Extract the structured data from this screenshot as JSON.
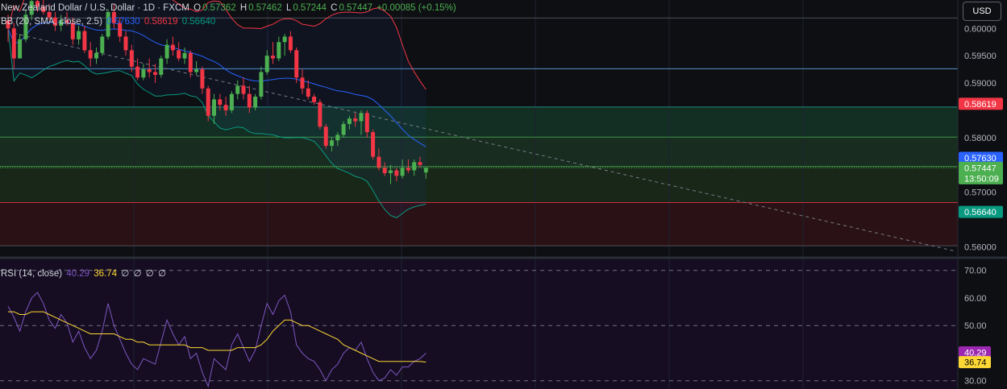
{
  "header": {
    "symbol_title": "New Zealand Dollar / U.S. Dollar · 1D · FXCM",
    "o_label": "O",
    "o_value": "0.57362",
    "h_label": "H",
    "h_value": "0.57462",
    "l_label": "L",
    "l_value": "0.57244",
    "c_label": "C",
    "c_value": "0.57447",
    "change": "+0.00085 (+0.15%)",
    "currency": "USD"
  },
  "bb_legend": {
    "label": "BB (20, SMA, close, 2.5)",
    "basis": "0.57630",
    "upper": "0.58619",
    "lower": "0.56640"
  },
  "rsi_legend": {
    "label": "RSI (14, close)",
    "rsi": "40.29",
    "ma": "36.74",
    "extra": [
      "∅",
      "∅",
      "∅",
      "∅"
    ]
  },
  "colors": {
    "up": "#4caf50",
    "down": "#f23645",
    "basis": "#2962ff",
    "upper": "#f23645",
    "lower": "#089981",
    "rsi": "#7e57c2",
    "rsi_ma": "#fdd835",
    "background": "#0e0f13"
  },
  "chart_data": [
    {
      "type": "candlestick",
      "title": "New Zealand Dollar / U.S. Dollar · 1D · FXCM",
      "ylim": [
        0.5583,
        0.6052
      ],
      "price_ticks": [
        "0.60000",
        "0.59500",
        "0.59000",
        "0.58000",
        "0.57000",
        "0.56000"
      ],
      "price_labels": [
        {
          "text": "0.58619",
          "value": 0.58619,
          "color": "#f23645"
        },
        {
          "text": "0.57630",
          "value": 0.5763,
          "color": "#2962ff"
        },
        {
          "text": "0.57447",
          "value": 0.57447,
          "color": "#4caf50",
          "sub": "13:50:09"
        },
        {
          "text": "0.56640",
          "value": 0.5664,
          "color": "#089981"
        }
      ],
      "horizontal_levels": [
        0.6019,
        0.5926,
        0.5856,
        0.5801,
        0.5747,
        0.5681,
        0.5602
      ],
      "zones": [
        {
          "from": 0.5856,
          "to": 0.5801,
          "color": "#143326"
        },
        {
          "from": 0.5801,
          "to": 0.5747,
          "color": "#1a3022"
        },
        {
          "from": 0.5747,
          "to": 0.5681,
          "color": "#1a2a1a"
        },
        {
          "from": 0.5681,
          "to": 0.5602,
          "color": "#2d1216"
        }
      ],
      "trendline": {
        "from": [
          1,
          0.5991
        ],
        "to": [
          197,
          0.5592
        ]
      },
      "candles": [
        [
          0.6015,
          0.6025,
          0.5975,
          0.6
        ],
        [
          0.6,
          0.601,
          0.5925,
          0.5945
        ],
        [
          0.5945,
          0.599,
          0.5945,
          0.598
        ],
        [
          0.598,
          0.6035,
          0.5975,
          0.6025
        ],
        [
          0.6025,
          0.606,
          0.6015,
          0.605
        ],
        [
          0.605,
          0.6065,
          0.603,
          0.604
        ],
        [
          0.604,
          0.6055,
          0.6025,
          0.603
        ],
        [
          0.603,
          0.6045,
          0.6015,
          0.602
        ],
        [
          0.602,
          0.603,
          0.5995,
          0.6005
        ],
        [
          0.6005,
          0.6025,
          0.5995,
          0.6015
        ],
        [
          0.6015,
          0.603,
          0.6005,
          0.601
        ],
        [
          0.601,
          0.602,
          0.597,
          0.598
        ],
        [
          0.598,
          0.6005,
          0.597,
          0.5995
        ],
        [
          0.5995,
          0.6005,
          0.5955,
          0.596
        ],
        [
          0.596,
          0.5975,
          0.593,
          0.5945
        ],
        [
          0.5945,
          0.5965,
          0.5935,
          0.5955
        ],
        [
          0.5955,
          0.599,
          0.595,
          0.5985
        ],
        [
          0.5985,
          0.6035,
          0.598,
          0.603
        ],
        [
          0.603,
          0.6045,
          0.6,
          0.601
        ],
        [
          0.601,
          0.602,
          0.5975,
          0.5985
        ],
        [
          0.5985,
          0.5995,
          0.595,
          0.596
        ],
        [
          0.596,
          0.597,
          0.592,
          0.593
        ],
        [
          0.593,
          0.5945,
          0.5905,
          0.591
        ],
        [
          0.591,
          0.5935,
          0.5905,
          0.5925
        ],
        [
          0.5925,
          0.5945,
          0.591,
          0.592
        ],
        [
          0.592,
          0.5935,
          0.59,
          0.5915
        ],
        [
          0.5915,
          0.595,
          0.591,
          0.5945
        ],
        [
          0.5945,
          0.598,
          0.5935,
          0.597
        ],
        [
          0.597,
          0.5985,
          0.595,
          0.596
        ],
        [
          0.596,
          0.5975,
          0.594,
          0.5945
        ],
        [
          0.5945,
          0.5965,
          0.5935,
          0.5955
        ],
        [
          0.5955,
          0.596,
          0.591,
          0.592
        ],
        [
          0.592,
          0.594,
          0.5915,
          0.5925
        ],
        [
          0.5925,
          0.593,
          0.588,
          0.589
        ],
        [
          0.589,
          0.5895,
          0.583,
          0.584
        ],
        [
          0.584,
          0.588,
          0.5825,
          0.587
        ],
        [
          0.587,
          0.588,
          0.585,
          0.586
        ],
        [
          0.586,
          0.5875,
          0.584,
          0.585
        ],
        [
          0.585,
          0.5885,
          0.5845,
          0.588
        ],
        [
          0.588,
          0.5905,
          0.587,
          0.5895
        ],
        [
          0.5895,
          0.591,
          0.587,
          0.588
        ],
        [
          0.588,
          0.5895,
          0.5845,
          0.5855
        ],
        [
          0.5855,
          0.588,
          0.585,
          0.5875
        ],
        [
          0.5875,
          0.593,
          0.587,
          0.592
        ],
        [
          0.592,
          0.596,
          0.5915,
          0.595
        ],
        [
          0.595,
          0.5975,
          0.5935,
          0.5945
        ],
        [
          0.5945,
          0.5985,
          0.594,
          0.5975
        ],
        [
          0.5975,
          0.599,
          0.595,
          0.5985
        ],
        [
          0.5985,
          0.5995,
          0.5955,
          0.596
        ],
        [
          0.596,
          0.5965,
          0.59,
          0.591
        ],
        [
          0.591,
          0.5925,
          0.588,
          0.589
        ],
        [
          0.589,
          0.5905,
          0.587,
          0.5875
        ],
        [
          0.5875,
          0.588,
          0.586,
          0.5865
        ],
        [
          0.5865,
          0.587,
          0.5815,
          0.582
        ],
        [
          0.582,
          0.5825,
          0.578,
          0.5785
        ],
        [
          0.5785,
          0.58,
          0.5775,
          0.5795
        ],
        [
          0.5795,
          0.581,
          0.5785,
          0.5805
        ],
        [
          0.5805,
          0.583,
          0.58,
          0.5825
        ],
        [
          0.5825,
          0.584,
          0.5815,
          0.5835
        ],
        [
          0.5835,
          0.5845,
          0.582,
          0.583
        ],
        [
          0.583,
          0.585,
          0.5805,
          0.5845
        ],
        [
          0.5845,
          0.585,
          0.58,
          0.581
        ],
        [
          0.581,
          0.5815,
          0.576,
          0.5765
        ],
        [
          0.5765,
          0.578,
          0.574,
          0.5745
        ],
        [
          0.5745,
          0.5755,
          0.573,
          0.5735
        ],
        [
          0.5735,
          0.575,
          0.5715,
          0.574
        ],
        [
          0.574,
          0.5745,
          0.572,
          0.573
        ],
        [
          0.573,
          0.576,
          0.5725,
          0.5745
        ],
        [
          0.5745,
          0.576,
          0.5735,
          0.574
        ],
        [
          0.574,
          0.576,
          0.573,
          0.5755
        ],
        [
          0.5755,
          0.5765,
          0.5745,
          0.575
        ],
        [
          0.57362,
          0.57462,
          0.57244,
          0.57447
        ]
      ]
    },
    {
      "type": "line",
      "title": "RSI (14, close)",
      "ylim": [
        27,
        74
      ],
      "yticks": [
        "70.00",
        "60.00",
        "50.00",
        "30.00"
      ],
      "levels": [
        70,
        50,
        30
      ],
      "value_labels": [
        {
          "text": "40.29",
          "value": 40.29,
          "color": "#9c27b0"
        },
        {
          "text": "36.74",
          "value": 36.74,
          "color": "#fdd835"
        }
      ],
      "rsi": [
        57,
        53,
        48,
        55,
        60,
        62,
        58,
        52,
        49,
        54,
        51,
        44,
        48,
        42,
        38,
        41,
        48,
        58,
        50,
        45,
        40,
        36,
        34,
        38,
        37,
        36,
        44,
        52,
        47,
        43,
        46,
        38,
        40,
        33,
        28,
        38,
        36,
        34,
        43,
        47,
        42,
        37,
        41,
        50,
        58,
        54,
        59,
        61,
        55,
        43,
        40,
        38,
        37,
        34,
        30,
        34,
        36,
        40,
        42,
        41,
        44,
        38,
        33,
        30,
        31,
        34,
        32,
        35,
        35,
        37,
        38,
        40
      ],
      "rsi_ma": [
        55,
        55,
        54,
        54,
        55,
        55,
        55,
        54,
        53,
        52,
        51,
        50,
        49,
        48,
        47,
        47,
        47,
        47,
        47,
        46,
        45,
        45,
        44,
        44,
        43,
        43,
        43,
        43,
        43,
        43,
        43,
        42,
        42,
        42,
        41,
        41,
        41,
        41,
        41,
        42,
        42,
        42,
        42,
        43,
        45,
        48,
        50,
        52,
        52,
        51,
        50,
        50,
        49,
        48,
        47,
        46,
        45,
        43,
        42,
        41,
        40,
        39,
        38,
        37,
        37,
        37,
        37,
        37,
        37,
        37,
        37,
        36.74
      ]
    }
  ]
}
